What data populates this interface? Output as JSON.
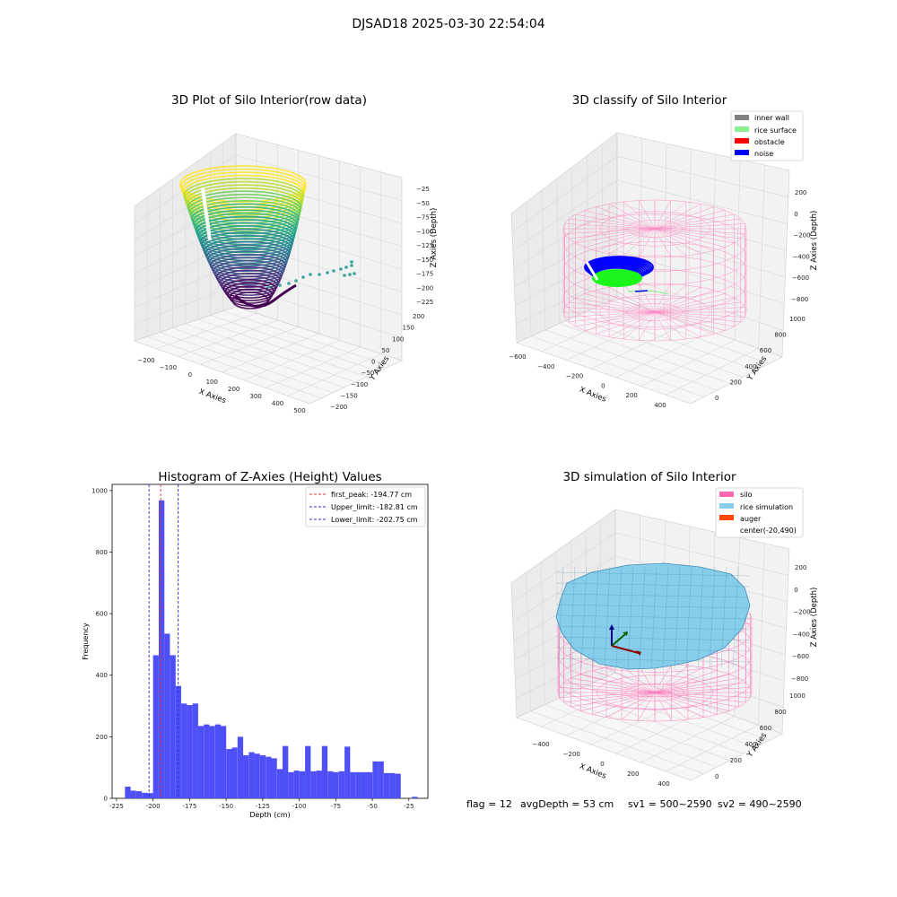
{
  "figure": {
    "suptitle": "DJSAD18 2025-03-30 22:54:04",
    "footer": {
      "flag": "flag = 12",
      "avg": "avgDepth = 53 cm",
      "sv1": "sv1 = 500~2590",
      "sv2": "sv2 = 490~2590"
    }
  },
  "colors": {
    "hist_bar": "#4f4ff7",
    "peak_line": "#e8322e",
    "limit_line": "#2b2bd8",
    "inner_wall": "#808080",
    "rice_surface": "#90ee90",
    "obstacle": "#ff0000",
    "noise": "#0000ff",
    "silo": "#ff69b4",
    "rice_simulation": "#87ceeb",
    "auger": "#ff4500"
  },
  "chart_data": [
    {
      "type": "scatter",
      "title": "3D Plot of Silo Interior(row data)",
      "xlabel": "X Axies",
      "ylabel": "Y Axies",
      "zlabel": "Z Axies (Depth)",
      "xticks": [
        "−200",
        "−100",
        "0",
        "100",
        "200",
        "300",
        "400",
        "500"
      ],
      "yticks": [
        "−200",
        "−150",
        "−100",
        "−50",
        "0",
        "50",
        "100",
        "150",
        "200"
      ],
      "zticks": [
        "−225",
        "−200",
        "−175",
        "−150",
        "−125",
        "−100",
        "−75",
        "−50",
        "−25"
      ],
      "xlim": [
        -250,
        500
      ],
      "ylim": [
        -200,
        200
      ],
      "zlim": [
        -225,
        -15
      ]
    },
    {
      "type": "scatter",
      "title": "3D classify of Silo Interior",
      "xlabel": "X Axies",
      "ylabel": "Y Axies",
      "zlabel": "Z Axies (Depth)",
      "xticks": [
        "−600",
        "−400",
        "−200",
        "0",
        "200",
        "400"
      ],
      "yticks": [
        "0",
        "200",
        "400",
        "600",
        "800",
        "1000"
      ],
      "zticks": [
        "−800",
        "−600",
        "−400",
        "−200",
        "0",
        "200"
      ],
      "legend": [
        "inner wall",
        "rice surface",
        "obstacle",
        "noise"
      ],
      "legend_loc": "upper right"
    },
    {
      "type": "bar",
      "title": "Histogram of Z-Axies (Height) Values",
      "xlabel": "Depth (cm)",
      "ylabel": "Frequency",
      "xlim": [
        -228,
        -12
      ],
      "ylim": [
        0,
        1020
      ],
      "xticks": [
        -225,
        -200,
        -175,
        -150,
        -125,
        -100,
        -75,
        -50,
        -25
      ],
      "yticks": [
        0,
        200,
        400,
        600,
        800,
        1000
      ],
      "bin_width": 3.85,
      "bins": [
        [
          -219.2,
          38
        ],
        [
          -215.4,
          25
        ],
        [
          -211.5,
          23
        ],
        [
          -207.6,
          18
        ],
        [
          -203.8,
          17
        ],
        [
          -200.0,
          465
        ],
        [
          -196.1,
          968
        ],
        [
          -192.3,
          535
        ],
        [
          -188.4,
          465
        ],
        [
          -184.6,
          365
        ],
        [
          -180.7,
          308
        ],
        [
          -176.9,
          303
        ],
        [
          -173.0,
          308
        ],
        [
          -169.2,
          235
        ],
        [
          -165.3,
          240
        ],
        [
          -161.5,
          235
        ],
        [
          -157.6,
          240
        ],
        [
          -153.8,
          235
        ],
        [
          -149.9,
          160
        ],
        [
          -146.1,
          165
        ],
        [
          -142.2,
          200
        ],
        [
          -138.4,
          140
        ],
        [
          -134.5,
          150
        ],
        [
          -130.7,
          145
        ],
        [
          -126.8,
          140
        ],
        [
          -122.9,
          135
        ],
        [
          -119.1,
          130
        ],
        [
          -115.2,
          95
        ],
        [
          -111.4,
          170
        ],
        [
          -107.6,
          85
        ],
        [
          -103.7,
          90
        ],
        [
          -99.8,
          88
        ],
        [
          -96.0,
          170
        ],
        [
          -92.1,
          88
        ],
        [
          -88.3,
          90
        ],
        [
          -84.5,
          170
        ],
        [
          -80.6,
          88
        ],
        [
          -76.8,
          85
        ],
        [
          -72.9,
          88
        ],
        [
          -69.0,
          168
        ],
        [
          -65.2,
          85
        ],
        [
          -61.3,
          85
        ],
        [
          -57.5,
          85
        ],
        [
          -53.7,
          85
        ],
        [
          -49.8,
          120
        ],
        [
          -46.0,
          120
        ],
        [
          -42.1,
          82
        ],
        [
          -38.3,
          82
        ],
        [
          -34.4,
          80
        ],
        [
          -30.6,
          0
        ],
        [
          -26.7,
          0
        ],
        [
          -22.9,
          5
        ]
      ],
      "vlines": [
        {
          "label": "first_peak: -194.77 cm",
          "x": -194.77,
          "color": "peak_line"
        },
        {
          "label": "Upper_limit: -182.81 cm",
          "x": -182.81,
          "color": "limit_line"
        },
        {
          "label": "Lower_limit: -202.75 cm",
          "x": -202.75,
          "color": "limit_line"
        }
      ],
      "legend_loc": "upper right"
    },
    {
      "type": "scatter",
      "title": "3D simulation of Silo Interior",
      "xlabel": "X Axies",
      "ylabel": "Y Axies",
      "zlabel": "Z Axies (Depth)",
      "xticks": [
        "−400",
        "−200",
        "0",
        "200",
        "400"
      ],
      "yticks": [
        "0",
        "200",
        "400",
        "600",
        "800",
        "1000"
      ],
      "zticks": [
        "−800",
        "−600",
        "−400",
        "−200",
        "0",
        "200"
      ],
      "legend": [
        "silo",
        "rice simulation",
        "auger",
        "center(-20,490)"
      ],
      "legend_loc": "upper right"
    }
  ]
}
